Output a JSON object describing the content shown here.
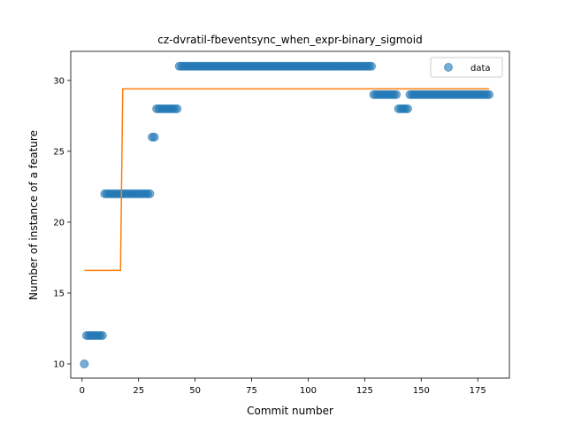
{
  "chart_data": {
    "type": "scatter",
    "title": "cz-dvratil-fbeventsync_when_expr-binary_sigmoid",
    "xlabel": "Commit number",
    "ylabel": "Number of instance of a feature",
    "xlim": [
      -5,
      189
    ],
    "ylim": [
      9.0,
      32.05
    ],
    "xticks": [
      0,
      25,
      50,
      75,
      100,
      125,
      150,
      175
    ],
    "yticks": [
      10,
      15,
      20,
      25,
      30
    ],
    "grid": false,
    "legend": {
      "placement": "top-right",
      "entries": [
        "data"
      ]
    },
    "colors": {
      "data": "#1f77b4",
      "fit": "#ff7f0e"
    },
    "series": [
      {
        "name": "data",
        "kind": "scatter",
        "segments": [
          {
            "x_start": 1,
            "x_end": 1,
            "y": 10
          },
          {
            "x_start": 2,
            "x_end": 9,
            "y": 12
          },
          {
            "x_start": 10,
            "x_end": 30,
            "y": 22
          },
          {
            "x_start": 31,
            "x_end": 32,
            "y": 26
          },
          {
            "x_start": 33,
            "x_end": 42,
            "y": 28
          },
          {
            "x_start": 43,
            "x_end": 128,
            "y": 31
          },
          {
            "x_start": 129,
            "x_end": 139,
            "y": 29
          },
          {
            "x_start": 140,
            "x_end": 144,
            "y": 28
          },
          {
            "x_start": 145,
            "x_end": 180,
            "y": 29
          }
        ]
      },
      {
        "kind": "line",
        "x": [
          1,
          17,
          18,
          180
        ],
        "y": [
          16.6,
          16.6,
          29.4,
          29.4
        ]
      }
    ]
  }
}
